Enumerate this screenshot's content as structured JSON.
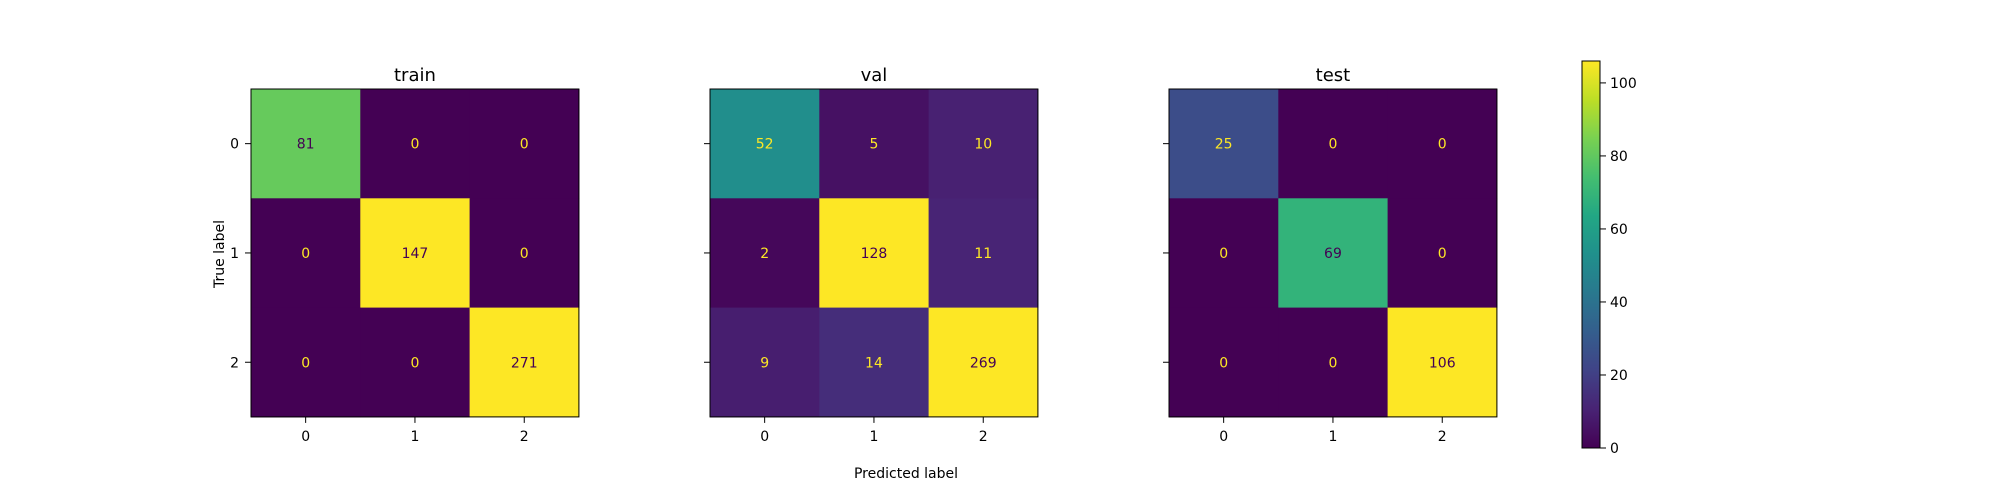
{
  "chart_data": {
    "type": "heatmap",
    "colormap": "viridis",
    "color_range": [
      0,
      106
    ],
    "xlabel": "Predicted label",
    "ylabel": "True label",
    "x_categories": [
      "0",
      "1",
      "2"
    ],
    "y_categories": [
      "0",
      "1",
      "2"
    ],
    "panels": [
      {
        "title": "train",
        "matrix": [
          [
            81,
            0,
            0
          ],
          [
            0,
            147,
            0
          ],
          [
            0,
            0,
            271
          ]
        ]
      },
      {
        "title": "val",
        "matrix": [
          [
            52,
            5,
            10
          ],
          [
            2,
            128,
            11
          ],
          [
            9,
            14,
            269
          ]
        ]
      },
      {
        "title": "test",
        "matrix": [
          [
            25,
            0,
            0
          ],
          [
            0,
            69,
            0
          ],
          [
            0,
            0,
            106
          ]
        ]
      }
    ],
    "colorbar": {
      "ticks": [
        0,
        20,
        40,
        60,
        80,
        100
      ]
    }
  }
}
